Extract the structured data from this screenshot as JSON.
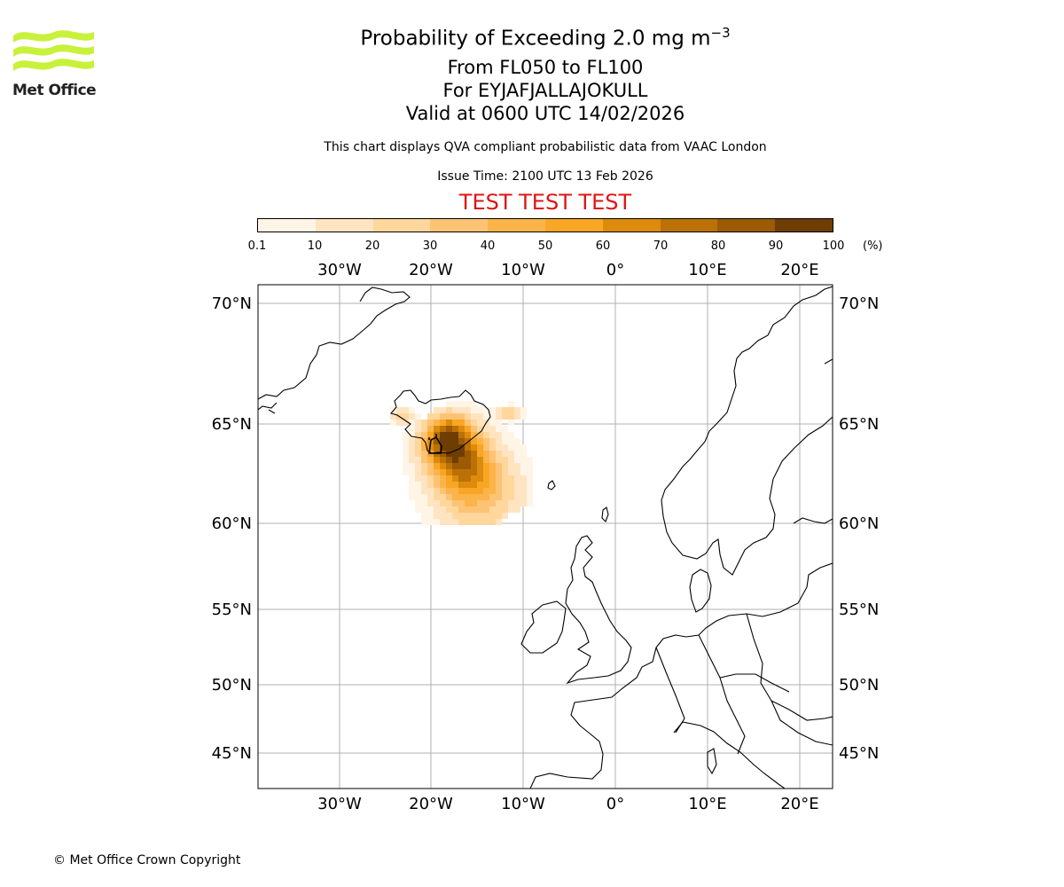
{
  "logo": {
    "name": "Met Office"
  },
  "header": {
    "title_prefix": "Probability of Exceeding 2.0 mg m",
    "title_exponent": "−3",
    "flight_levels": "From FL050 to FL100",
    "volcano": "For EYJAFJALLAJOKULL",
    "valid_time": "Valid at 0600 UTC 14/02/2026",
    "subtitle": "This chart displays QVA compliant probabilistic data from VAAC London",
    "issue_time": "Issue Time: 2100 UTC 13 Feb 2026",
    "test_banner": "TEST TEST TEST"
  },
  "colorbar": {
    "ticks": [
      "0.1",
      "10",
      "20",
      "30",
      "40",
      "50",
      "60",
      "70",
      "80",
      "90",
      "100"
    ],
    "unit": "(%)",
    "colors": [
      "#fff5e6",
      "#ffe4c2",
      "#ffd79d",
      "#fdc374",
      "#fbb44a",
      "#f9a625",
      "#dd8b0c",
      "#bb7106",
      "#9b5a03",
      "#6d3d02"
    ]
  },
  "map": {
    "lon_labels": [
      "30°W",
      "20°W",
      "10°W",
      "0°",
      "10°E",
      "20°E"
    ],
    "lat_labels": [
      "70°N",
      "65°N",
      "60°N",
      "55°N",
      "50°N",
      "45°N"
    ]
  },
  "footer": {
    "copyright": "© Met Office Crown Copyright"
  }
}
